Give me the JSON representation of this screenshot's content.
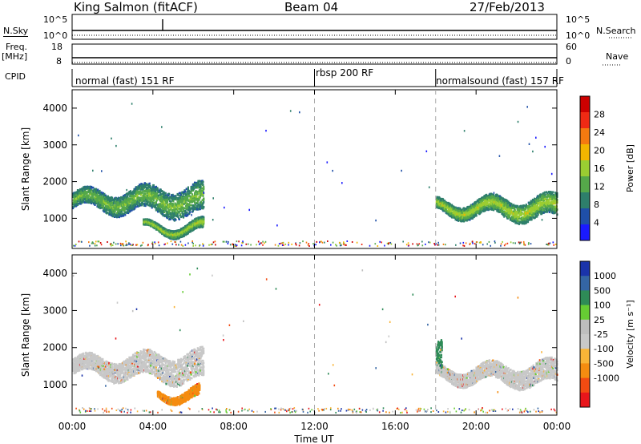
{
  "header": {
    "station": "King Salmon (fitACF)",
    "beam": "Beam 04",
    "date": "27/Feb/2013"
  },
  "summary_panels": {
    "nsky_label": "N.Sky",
    "nsky_ticks": [
      "10^5",
      "10^0"
    ],
    "nsearch_label": "N.Search",
    "nsearch_ticks": [
      "10^5",
      "10^0"
    ],
    "freq_label": "Freq.",
    "freq_unit": "[MHz]",
    "freq_ticks": [
      "18",
      "8"
    ],
    "nave_label": "Nave",
    "nave_ticks": [
      "60",
      "0"
    ],
    "cpid_label": "CPID",
    "cpid_segments": [
      {
        "label": "normal (fast) 151 RF",
        "start_hour": 0,
        "end_hour": 12
      },
      {
        "label": "rbsp 200 RF",
        "start_hour": 12,
        "end_hour": 18
      },
      {
        "label": "normalsound (fast) 157 RF",
        "start_hour": 18,
        "end_hour": 24
      }
    ]
  },
  "colors": {
    "power": [
      "#1a1aff",
      "#1f4fa8",
      "#2e7f6b",
      "#55a84a",
      "#9acd32",
      "#f2b500",
      "#f47a10",
      "#ef2a14",
      "#cc0000"
    ],
    "velocity": [
      "#e8161b",
      "#f24b12",
      "#f58c10",
      "#f9b437",
      "#c8c8c8",
      "#bebebe",
      "#66cc33",
      "#2e8b57",
      "#3465a4",
      "#1a33aa"
    ],
    "ground_scatter": "#bebebe"
  },
  "chart_data": [
    {
      "type": "heatmap",
      "title": "Power",
      "xlabel": "",
      "ylabel": "Slant Range [km]",
      "xlim": [
        0,
        24
      ],
      "ylim": [
        180,
        4500
      ],
      "y_ticks": [
        1000,
        2000,
        3000,
        4000
      ],
      "x_tick_labels": [
        "00:00",
        "04:00",
        "08:00",
        "12:00",
        "16:00",
        "20:00",
        "00:00"
      ],
      "colorbar": {
        "label": "Power [dB]",
        "ticks": [
          "4",
          "8",
          "12",
          "16",
          "20",
          "24",
          "28"
        ]
      },
      "features": [
        {
          "t_start": 0.0,
          "t_end": 6.5,
          "range_start": 1100,
          "range_end": 1900,
          "mean_power_db": 10
        },
        {
          "t_start": 3.5,
          "t_end": 6.5,
          "range_start": 600,
          "range_end": 900,
          "mean_power_db": 12
        },
        {
          "t_start": 18.0,
          "t_end": 24.0,
          "range_start": 1000,
          "range_end": 1600,
          "mean_power_db": 12
        }
      ]
    },
    {
      "type": "heatmap",
      "title": "Velocity",
      "xlabel": "Time UT",
      "ylabel": "Slant Range [km]",
      "xlim": [
        0,
        24
      ],
      "ylim": [
        180,
        4500
      ],
      "y_ticks": [
        1000,
        2000,
        3000,
        4000
      ],
      "x_tick_labels": [
        "00:00",
        "04:00",
        "08:00",
        "12:00",
        "16:00",
        "20:00",
        "00:00"
      ],
      "colorbar": {
        "label": "Velocity [m s⁻¹]",
        "ticks": [
          "1000",
          "500",
          "100",
          "25",
          "-25",
          "-100",
          "-500",
          "-1000"
        ]
      },
      "features": [
        {
          "t_start": 0.0,
          "t_end": 6.5,
          "range_start": 1100,
          "range_end": 1900,
          "velocity": 0
        },
        {
          "t_start": 4.2,
          "t_end": 6.3,
          "range_start": 600,
          "range_end": 900,
          "velocity": -150
        },
        {
          "t_start": 18.0,
          "t_end": 24.0,
          "range_start": 1000,
          "range_end": 1600,
          "velocity": 0
        },
        {
          "t_start": 18.0,
          "t_end": 18.3,
          "range_start": 1300,
          "range_end": 2200,
          "velocity": 150
        }
      ]
    }
  ]
}
